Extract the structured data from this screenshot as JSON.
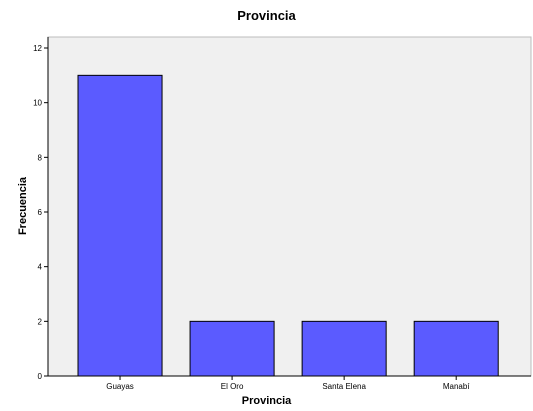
{
  "chart_data": {
    "type": "bar",
    "title": "Provincia",
    "xlabel": "Provincia",
    "ylabel": "Frecuencia",
    "categories": [
      "Guayas",
      "El Oro",
      "Santa Elena",
      "Manabí"
    ],
    "values": [
      11,
      2,
      2,
      2
    ],
    "ylim": [
      0,
      12
    ],
    "yticks": [
      "0",
      "2",
      "4",
      "6",
      "8",
      "10",
      "12"
    ],
    "grid": false,
    "legend": "none",
    "bar_color": "#5b5bff",
    "plot_background": "#f0f0f0"
  }
}
